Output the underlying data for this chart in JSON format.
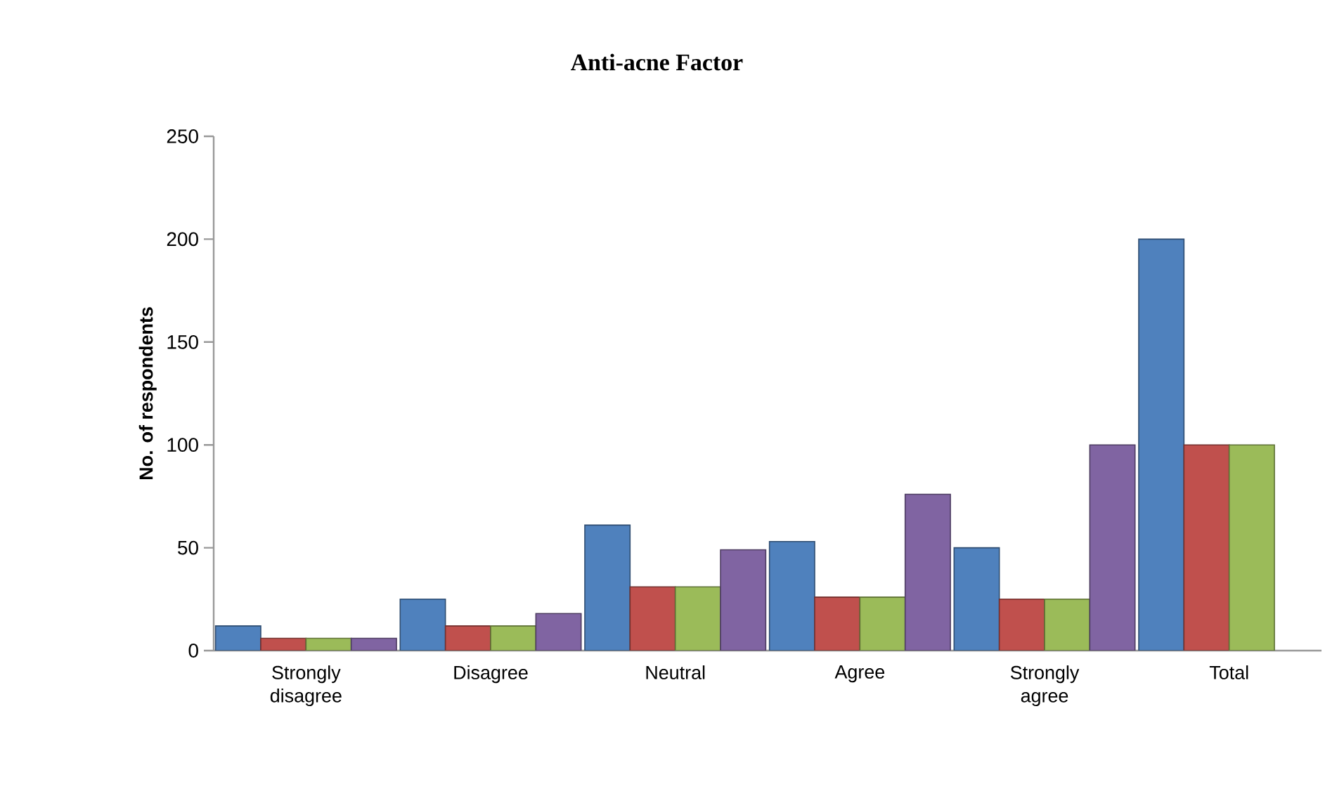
{
  "chart_data": {
    "type": "bar",
    "title": "Anti-acne Factor",
    "ylabel": "No. of respondents",
    "categories": [
      "Strongly disagree",
      "Disagree",
      "Neutral",
      "Agree",
      "Strongly agree",
      "Total"
    ],
    "series": [
      {
        "color": "#4f81bd",
        "values": [
          12,
          25,
          61,
          53,
          50,
          200
        ]
      },
      {
        "color": "#c0504d",
        "values": [
          6,
          12,
          31,
          26,
          25,
          100
        ]
      },
      {
        "color": "#9bbb59",
        "values": [
          6,
          12,
          31,
          26,
          25,
          100
        ]
      },
      {
        "color": "#8064a2",
        "values": [
          6,
          18,
          49,
          76,
          100,
          null
        ]
      }
    ],
    "ylim": [
      0,
      250
    ],
    "yticks": [
      0,
      50,
      100,
      150,
      200,
      250
    ],
    "grid": false
  }
}
